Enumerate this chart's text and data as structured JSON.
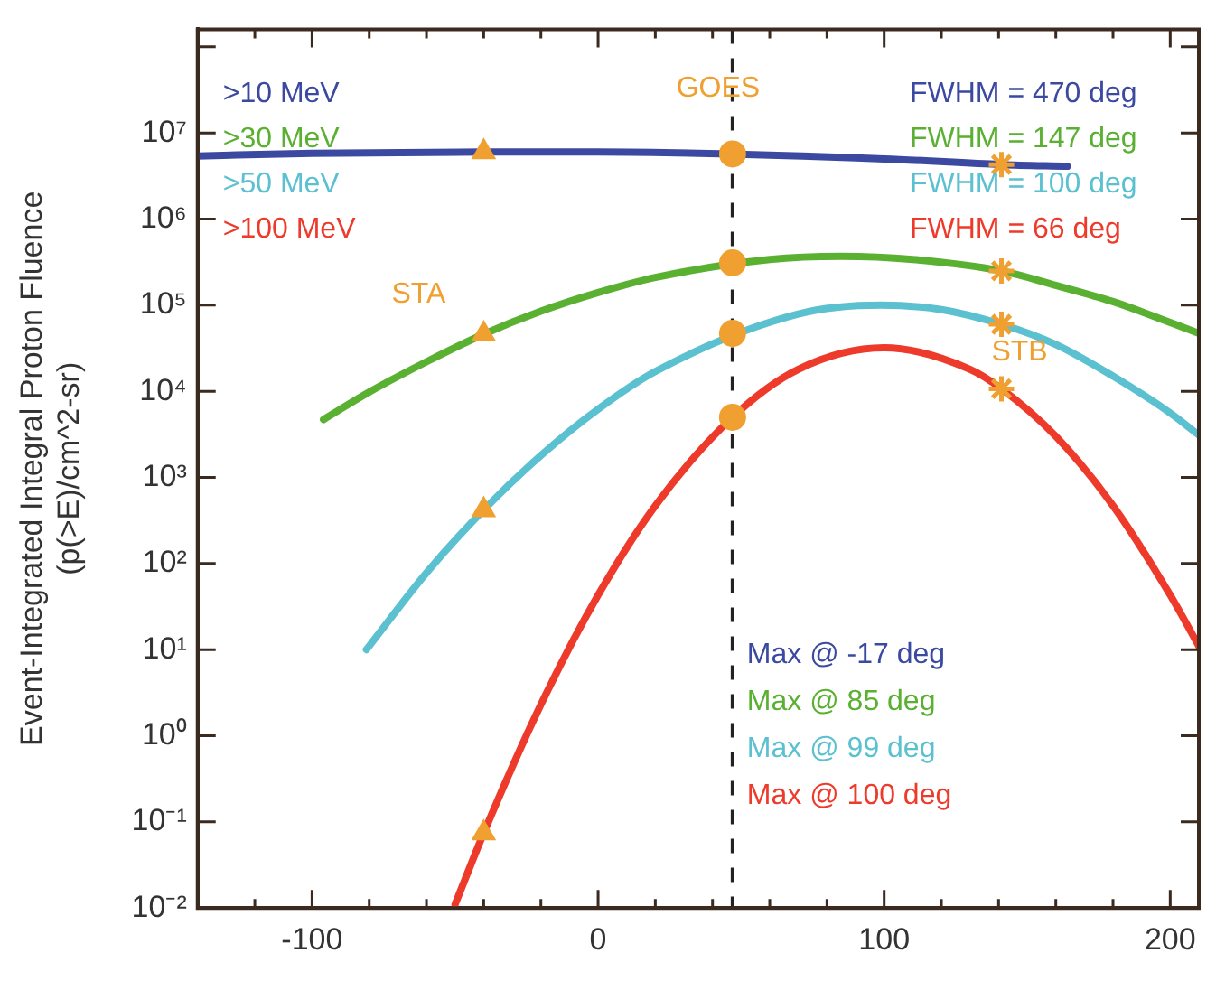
{
  "chart_data": {
    "type": "line",
    "ylabel": "Event-Integrated Integral Proton Fluence\n(p(>E)/cm^2-sr)",
    "log": "y",
    "grid": false,
    "legend": "top left",
    "marker": "none",
    "line_style": "solid",
    "xlim": [
      -140,
      210
    ],
    "xticks": [
      {
        "value": -140,
        "label": null
      },
      {
        "value": -120,
        "label": null
      },
      -100,
      {
        "value": -80,
        "label": null
      },
      {
        "value": -60,
        "label": null
      },
      {
        "value": -40,
        "label": null
      },
      {
        "value": -20,
        "label": null
      },
      0,
      {
        "value": 20,
        "label": null
      },
      {
        "value": 40,
        "label": null
      },
      {
        "value": 60,
        "label": null
      },
      {
        "value": 80,
        "label": null
      },
      100,
      {
        "value": 120,
        "label": null
      },
      {
        "value": 140,
        "label": null
      },
      {
        "value": 160,
        "label": null
      },
      {
        "value": 180,
        "label": null
      },
      200
    ],
    "ylim": [
      0.01,
      160000000
    ],
    "yticks": [
      {
        "value": 0.01,
        "label": "10⁻²"
      },
      {
        "value": 0.1,
        "label": "10⁻¹"
      },
      {
        "value": 1,
        "label": "10⁰"
      },
      {
        "value": 10,
        "label": "10¹"
      },
      {
        "value": 100,
        "label": "10²"
      },
      {
        "value": 1000,
        "label": "10³"
      },
      {
        "value": 10000,
        "label": "10⁴"
      },
      {
        "value": 100000,
        "label": "10⁵"
      },
      {
        "value": 1000000,
        "label": "10⁶"
      },
      {
        "value": 10000000,
        "label": "10⁷"
      },
      {
        "value": 100000000,
        "label": null
      }
    ],
    "series": [
      {
        "name": ">10 MeV",
        "color": "#3b4aa0",
        "x": [
          -140,
          -100,
          -40,
          0,
          100,
          141,
          164
        ],
        "values": [
          5400000,
          5800000,
          6000000,
          6000000,
          5000000,
          4300000,
          4100000
        ]
      },
      {
        "name": ">30 MeV",
        "color": "#5ab031",
        "x": [
          -96,
          -80,
          -60,
          -40,
          -20,
          0,
          20,
          60,
          85,
          110,
          141,
          160,
          180,
          200,
          210
        ],
        "values": [
          4700,
          9800,
          22000,
          46000,
          85000,
          140000,
          210000,
          340000,
          370000,
          340000,
          250000,
          170000,
          110000,
          63000,
          47000
        ]
      },
      {
        "name": ">50 MeV",
        "color": "#5bc0d0",
        "x": [
          -81,
          -60,
          -40,
          -20,
          0,
          20,
          70,
          99,
          120,
          141,
          160,
          180,
          200,
          210
        ],
        "values": [
          10,
          78,
          420,
          1800,
          6200,
          17000,
          79000,
          100000,
          89000,
          60000,
          35000,
          15000,
          5600,
          3100
        ]
      },
      {
        "name": ">100 MeV",
        "color": "#ee3a2a",
        "x": [
          -50,
          -40,
          -20,
          0,
          20,
          47,
          70,
          100,
          130,
          141,
          160,
          180,
          200,
          210
        ],
        "values": [
          0.011,
          0.074,
          2.3,
          43,
          470,
          5000,
          18000,
          32000,
          18000,
          10700,
          3000,
          470,
          43,
          11
        ]
      },
      {
        "type": "scatter",
        "name": "STA",
        "color": "#f0a030",
        "marker": "triangle",
        "x": [
          -40,
          -40,
          -40,
          -40
        ],
        "values": [
          6000000,
          46000,
          420,
          0.074
        ]
      },
      {
        "type": "scatter",
        "name": "GOES",
        "color": "#f0a030",
        "marker": "circle",
        "x": [
          47,
          47,
          47,
          47
        ],
        "values": [
          5700000,
          310000,
          47000,
          5000
        ]
      },
      {
        "type": "scatter",
        "name": "STB",
        "color": "#f0a030",
        "marker": "cross",
        "x": [
          141,
          141,
          141,
          141
        ],
        "values": [
          4300000,
          250000,
          60000,
          10700
        ]
      }
    ],
    "ref_lines": [
      {
        "axis": "x",
        "value": 47,
        "color": "#222222",
        "line_style": "dashed"
      }
    ],
    "annotations": [
      "FWHM = 470 deg",
      "FWHM = 147 deg",
      "FWHM = 100 deg",
      "FWHM = 66 deg",
      "Max @ -17 deg",
      "Max @ 85 deg",
      "Max @ 99 deg",
      "Max @ 100 deg"
    ]
  }
}
